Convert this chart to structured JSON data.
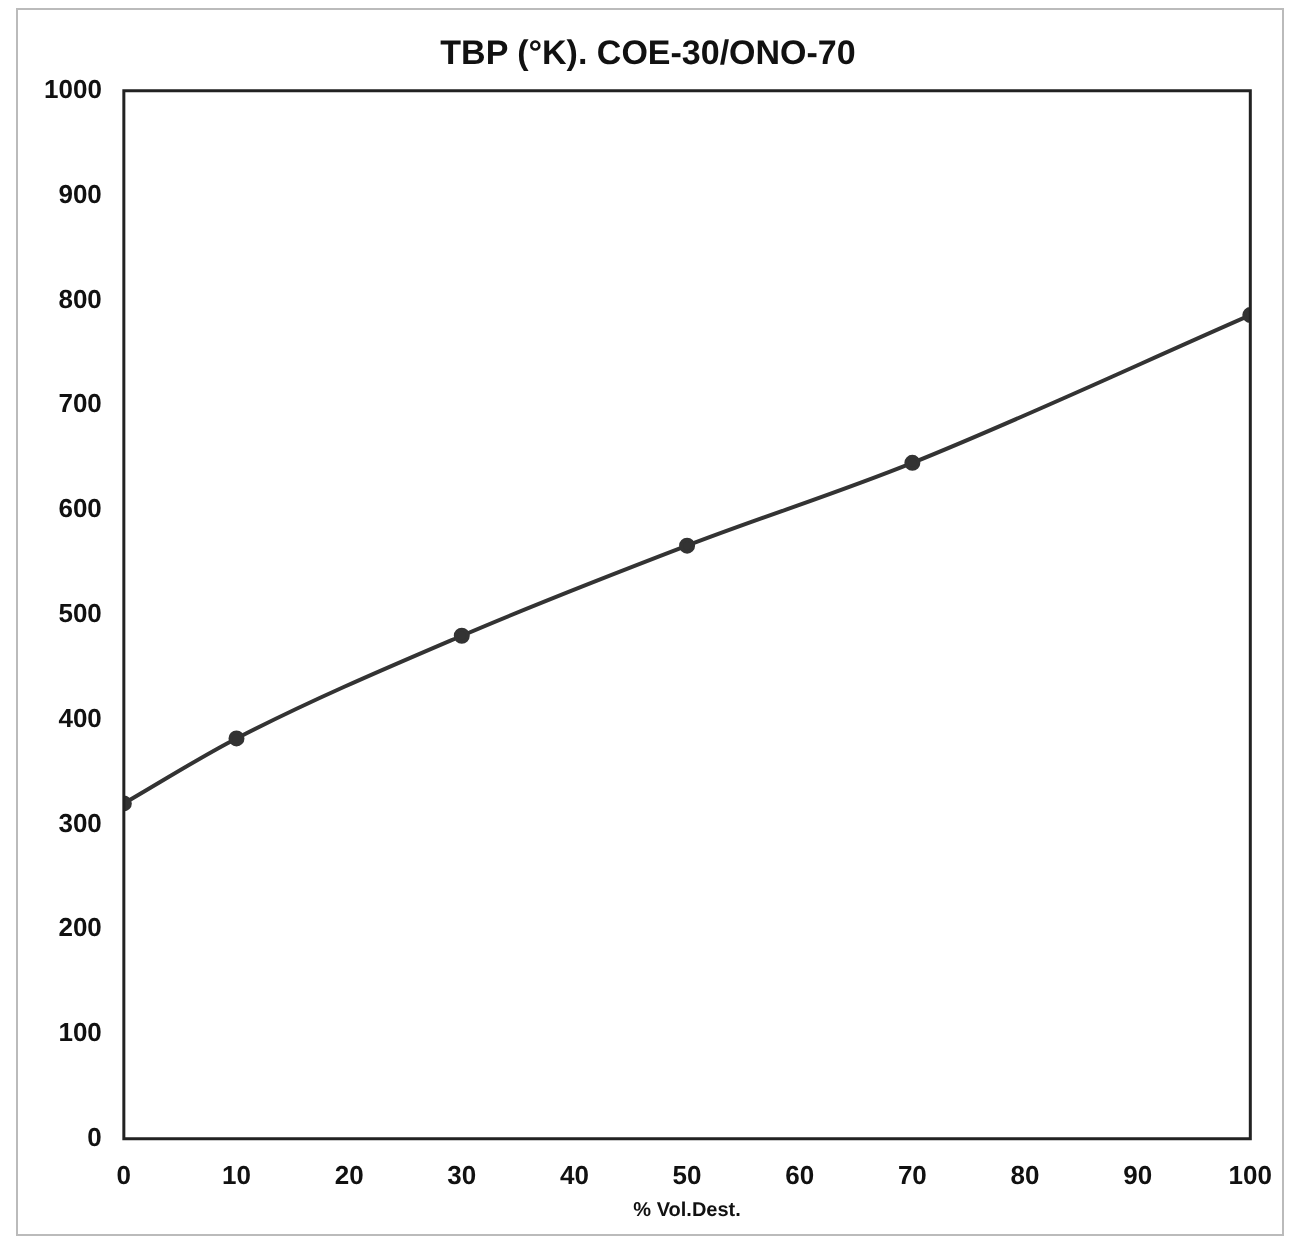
{
  "chart_data": {
    "type": "line",
    "title": "TBP (°K). COE-30/ONO-70",
    "xlabel": "% Vol.Dest.",
    "x": [
      0,
      10,
      30,
      50,
      70,
      100
    ],
    "series": [
      {
        "color": "#333333",
        "values": [
          320,
          382,
          480,
          566,
          645,
          786
        ]
      }
    ],
    "xlim": [
      0,
      100
    ],
    "xticks": [
      0,
      10,
      20,
      30,
      40,
      50,
      60,
      70,
      80,
      90,
      100
    ],
    "ylim": [
      0,
      1000
    ],
    "yticks": [
      0,
      100,
      200,
      300,
      400,
      500,
      600,
      700,
      800,
      900,
      1000
    ],
    "grid": false,
    "legend": false,
    "marker": "circle",
    "line_style": "solid"
  }
}
